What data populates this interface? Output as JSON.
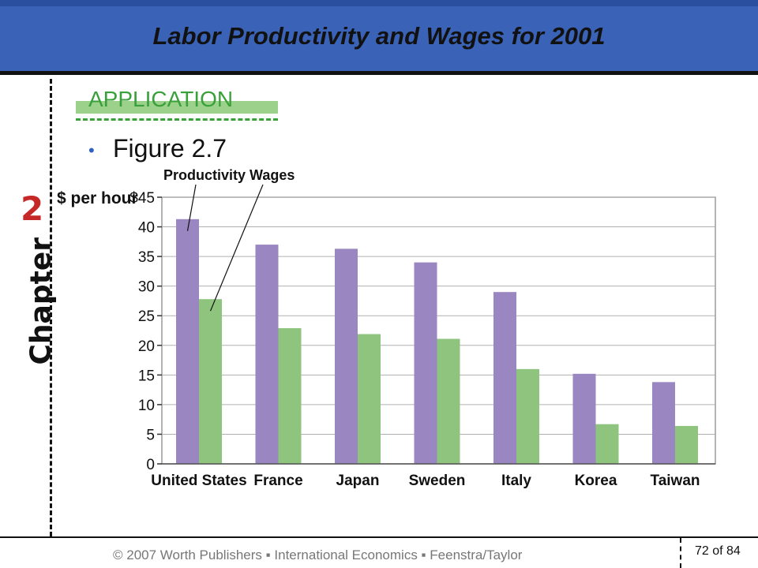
{
  "slide": {
    "title": "Labor Productivity and Wages for 2001",
    "chapter_number": "2",
    "chapter_label": "Chapter",
    "section_label": "APPLICATION",
    "bullet_text": "Figure 2.7",
    "footer": "© 2007 Worth Publishers ▪ International Economics ▪ Feenstra/Taylor",
    "page": "72 of 84"
  },
  "colors": {
    "title_bar": "#3a63b8",
    "productivity": "#9a86c0",
    "wages": "#8ec47e",
    "chapter_number": "#c62828",
    "application": "#3aa13a"
  },
  "chart_data": {
    "type": "bar",
    "ylabel": "$ per hour",
    "categories": [
      "United States",
      "France",
      "Japan",
      "Sweden",
      "Italy",
      "Korea",
      "Taiwan"
    ],
    "series": [
      {
        "name": "Productivity",
        "values": [
          41.3,
          37.0,
          36.3,
          34.0,
          29.0,
          15.2,
          13.8
        ]
      },
      {
        "name": "Wages",
        "values": [
          27.8,
          22.9,
          21.9,
          21.1,
          16.0,
          6.7,
          6.4
        ]
      }
    ],
    "ylim": [
      0,
      45
    ],
    "yticks": [
      {
        "value": 45,
        "label": "$45"
      },
      {
        "value": 40,
        "label": "40"
      },
      {
        "value": 35,
        "label": "35"
      },
      {
        "value": 30,
        "label": "30"
      },
      {
        "value": 25,
        "label": "25"
      },
      {
        "value": 20,
        "label": "20"
      },
      {
        "value": 15,
        "label": "15"
      },
      {
        "value": 10,
        "label": "10"
      },
      {
        "value": 5,
        "label": "5"
      },
      {
        "value": 0,
        "label": "0"
      }
    ],
    "grid": true,
    "legend": "callout labels pointing to first category bars"
  }
}
